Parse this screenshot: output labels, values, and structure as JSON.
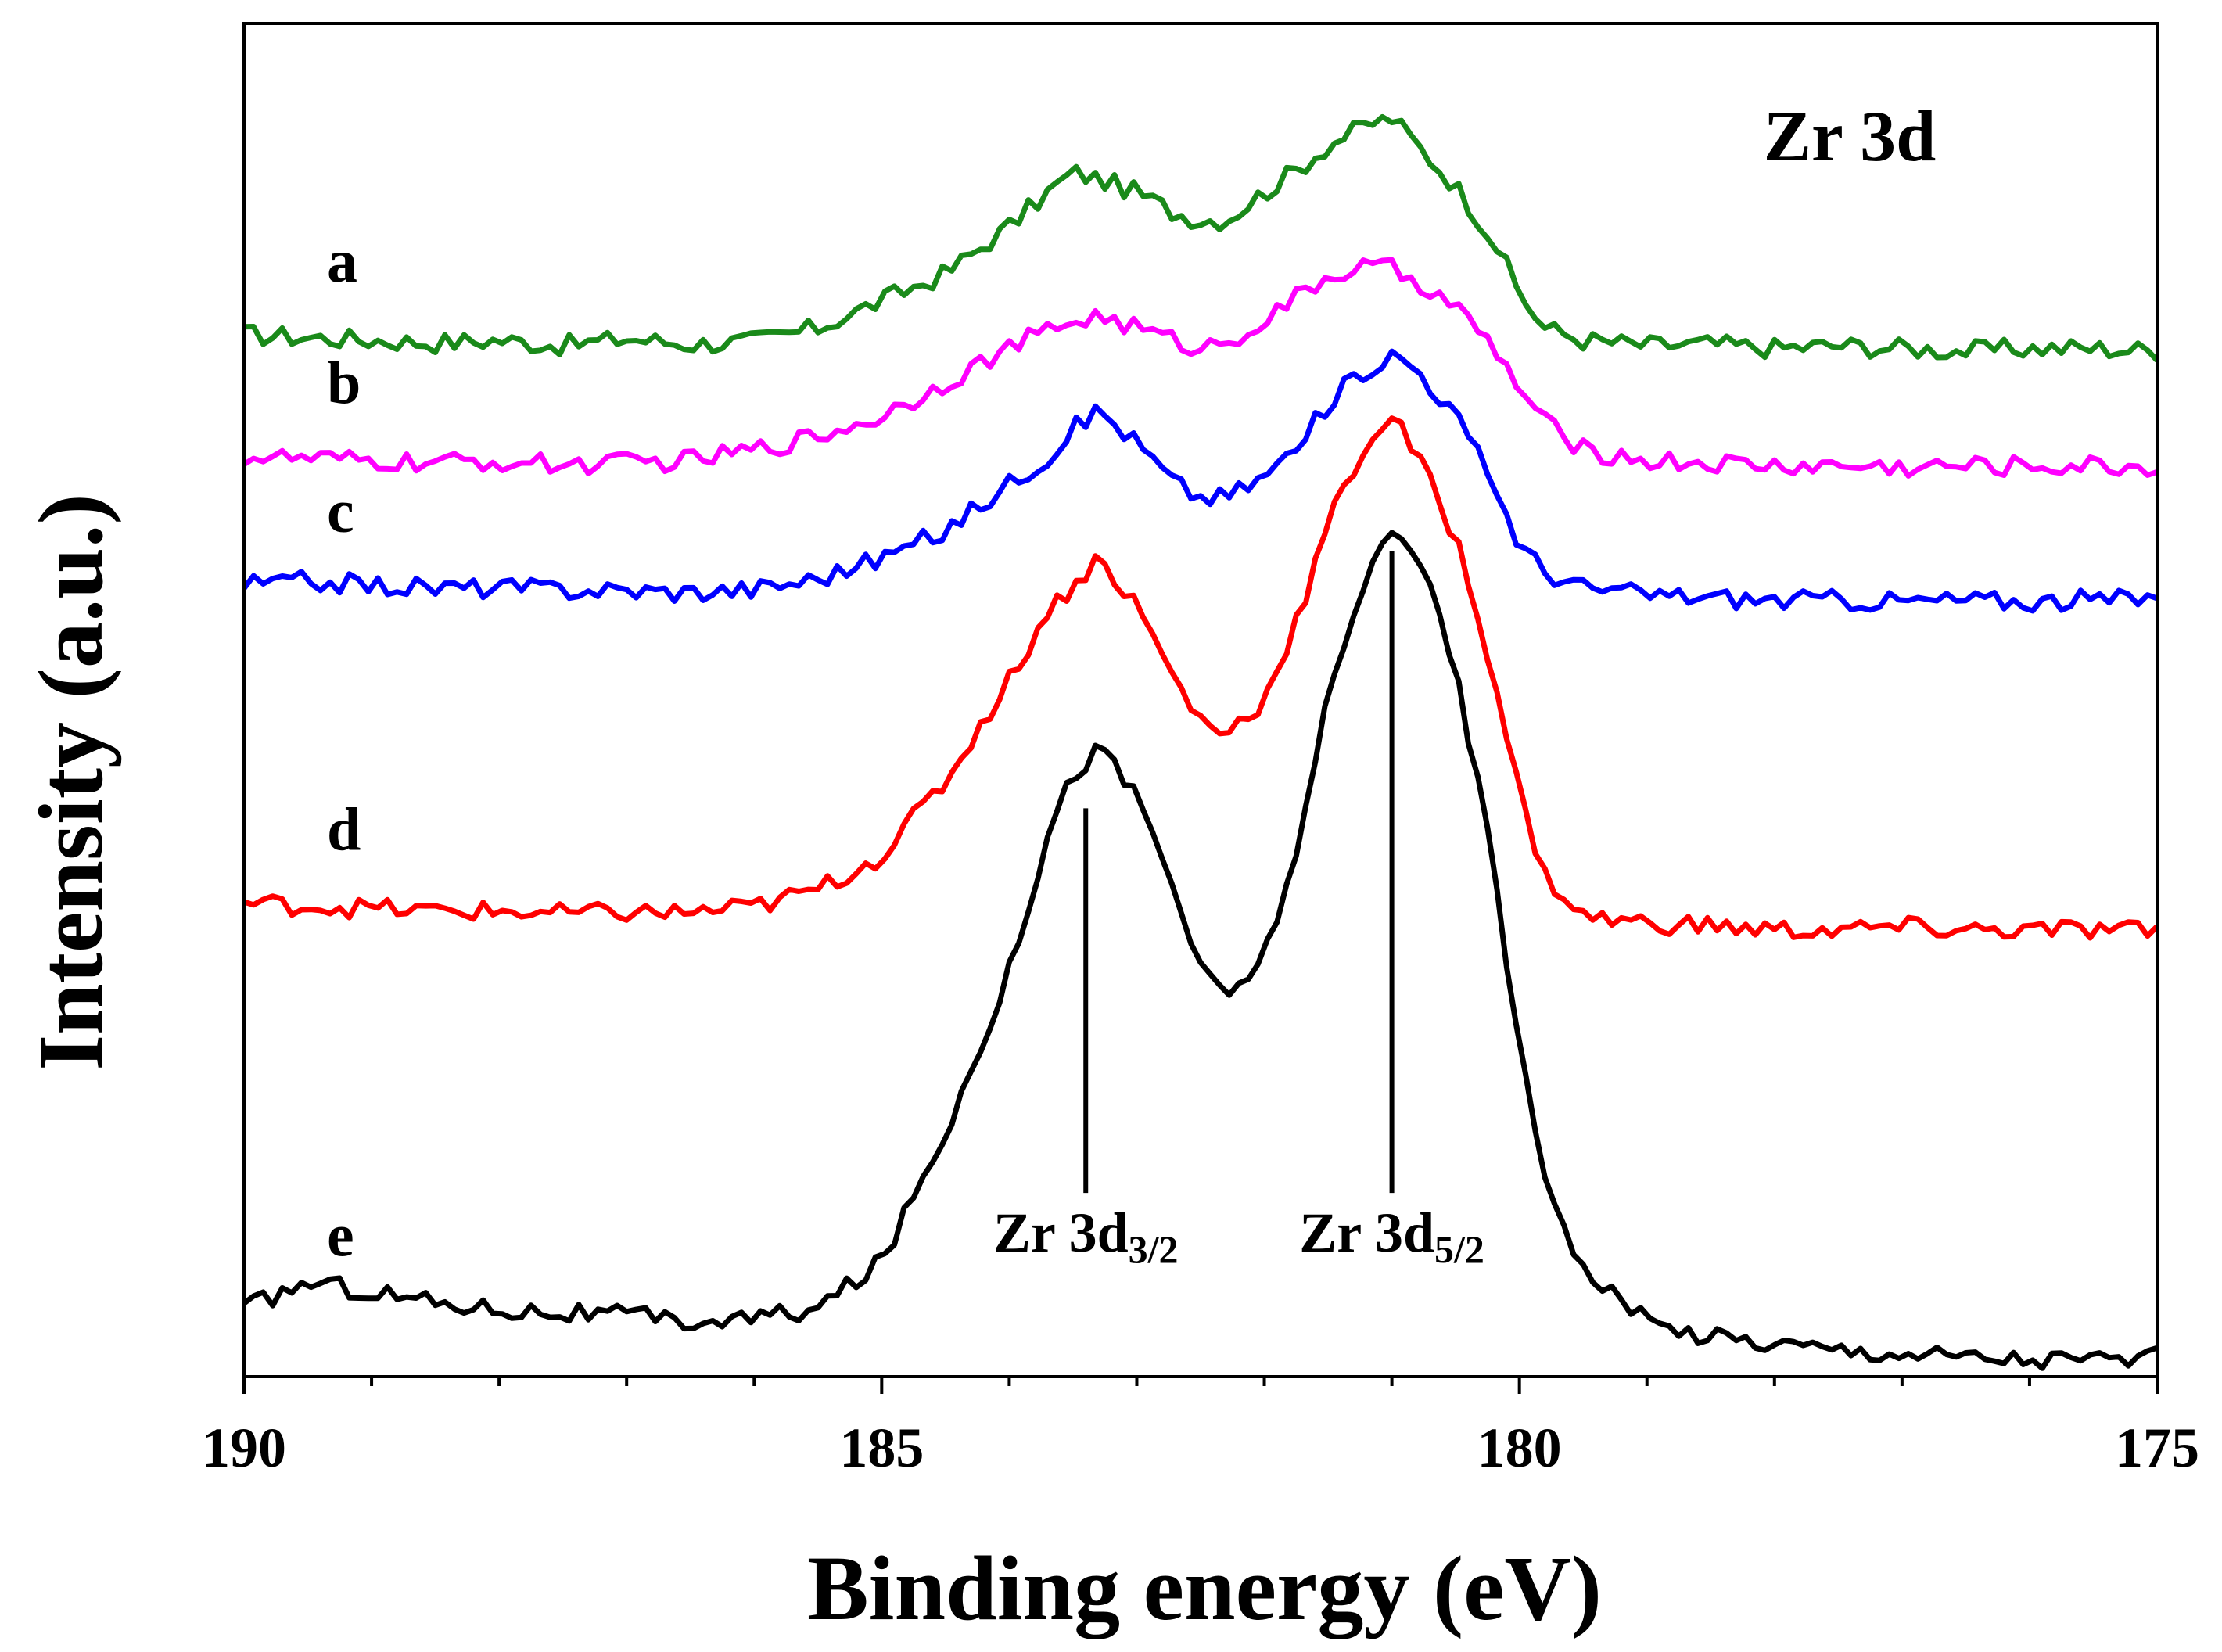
{
  "chart_data": {
    "type": "line",
    "title": "Zr 3d",
    "xlabel": "Binding energy (eV)",
    "ylabel": "Intensity (a.u.)",
    "xlim": [
      190,
      175
    ],
    "xticks": [
      190,
      185,
      180,
      175
    ],
    "x_reversed": true,
    "ylim": [
      0,
      100
    ],
    "y_tick_labels": false,
    "grid": false,
    "legend": "curve letters at left of each trace",
    "series": [
      {
        "name": "a",
        "color": "#1a8a1a",
        "points": [
          [
            190,
            77
          ],
          [
            189.5,
            76.8
          ],
          [
            189,
            76.6
          ],
          [
            188.5,
            76.4
          ],
          [
            188,
            76.6
          ],
          [
            187.5,
            76.2
          ],
          [
            187,
            76.7
          ],
          [
            186.5,
            76.3
          ],
          [
            186,
            76.5
          ],
          [
            185.5,
            77.5
          ],
          [
            185,
            79.5
          ],
          [
            184.5,
            81.5
          ],
          [
            184,
            85
          ],
          [
            183.7,
            87.5
          ],
          [
            183.5,
            89
          ],
          [
            183.3,
            88.5
          ],
          [
            183,
            87.5
          ],
          [
            182.7,
            86
          ],
          [
            182.5,
            85.5
          ],
          [
            182.3,
            85.5
          ],
          [
            182,
            87.5
          ],
          [
            181.7,
            89.5
          ],
          [
            181.5,
            91
          ],
          [
            181.2,
            92.5
          ],
          [
            181,
            93
          ],
          [
            180.8,
            91
          ],
          [
            180.5,
            88
          ],
          [
            180.2,
            84
          ],
          [
            180,
            80
          ],
          [
            179.8,
            77.5
          ],
          [
            179.5,
            76.6
          ],
          [
            179,
            76.2
          ],
          [
            178.5,
            76.3
          ],
          [
            178,
            76
          ],
          [
            177.5,
            76.2
          ],
          [
            177,
            76
          ],
          [
            176.5,
            75.8
          ],
          [
            176,
            76
          ],
          [
            175.5,
            76
          ],
          [
            175,
            75.8
          ]
        ]
      },
      {
        "name": "b",
        "color": "#ff00ff",
        "points": [
          [
            190,
            68
          ],
          [
            189.5,
            67.8
          ],
          [
            189,
            67.6
          ],
          [
            188.5,
            67.5
          ],
          [
            188,
            67.6
          ],
          [
            187.5,
            67.4
          ],
          [
            187,
            67.5
          ],
          [
            186.5,
            67.7
          ],
          [
            186,
            68.5
          ],
          [
            185.5,
            69.5
          ],
          [
            185,
            71
          ],
          [
            184.5,
            73.5
          ],
          [
            184,
            76
          ],
          [
            183.7,
            77.3
          ],
          [
            183.5,
            78
          ],
          [
            183.3,
            78.4
          ],
          [
            183,
            77.5
          ],
          [
            182.7,
            76.5
          ],
          [
            182.5,
            76
          ],
          [
            182.3,
            76.5
          ],
          [
            182,
            78
          ],
          [
            181.7,
            80
          ],
          [
            181.5,
            81.3
          ],
          [
            181.2,
            82
          ],
          [
            181,
            81.8
          ],
          [
            180.8,
            81
          ],
          [
            180.5,
            79
          ],
          [
            180.2,
            76
          ],
          [
            180,
            73
          ],
          [
            179.8,
            70.5
          ],
          [
            179.5,
            68.5
          ],
          [
            179,
            67.7
          ],
          [
            178.5,
            67.5
          ],
          [
            178,
            67.3
          ],
          [
            177.5,
            67.3
          ],
          [
            177,
            67.2
          ],
          [
            176.5,
            67.3
          ],
          [
            176,
            67.3
          ],
          [
            175.5,
            67.3
          ],
          [
            175,
            67.2
          ]
        ]
      },
      {
        "name": "c",
        "color": "#0000ff",
        "points": [
          [
            190,
            58.5
          ],
          [
            189.5,
            58.8
          ],
          [
            189,
            58.5
          ],
          [
            188.5,
            58.3
          ],
          [
            188,
            58.3
          ],
          [
            187.5,
            58.2
          ],
          [
            187,
            58.1
          ],
          [
            186.5,
            58
          ],
          [
            186,
            58.2
          ],
          [
            185.5,
            59
          ],
          [
            185,
            60.5
          ],
          [
            184.5,
            62.5
          ],
          [
            184,
            66
          ],
          [
            183.7,
            68
          ],
          [
            183.5,
            70
          ],
          [
            183.3,
            71.5
          ],
          [
            183,
            69
          ],
          [
            182.7,
            66
          ],
          [
            182.5,
            65
          ],
          [
            182.3,
            65
          ],
          [
            182,
            66.5
          ],
          [
            181.7,
            69
          ],
          [
            181.5,
            72
          ],
          [
            181.2,
            74.5
          ],
          [
            181,
            75.5
          ],
          [
            180.8,
            74.5
          ],
          [
            180.5,
            71
          ],
          [
            180.2,
            66
          ],
          [
            180,
            61.5
          ],
          [
            179.8,
            59.5
          ],
          [
            179.5,
            58.3
          ],
          [
            179,
            57.8
          ],
          [
            178.5,
            57.6
          ],
          [
            178,
            57.4
          ],
          [
            177.5,
            57.4
          ],
          [
            177,
            57.3
          ],
          [
            176.5,
            57.4
          ],
          [
            176,
            57.3
          ],
          [
            175.5,
            57.4
          ],
          [
            175,
            57.5
          ]
        ]
      },
      {
        "name": "d",
        "color": "#ff0000",
        "points": [
          [
            190,
            35
          ],
          [
            189.5,
            34.8
          ],
          [
            189,
            34.6
          ],
          [
            188.5,
            34.4
          ],
          [
            188,
            34.4
          ],
          [
            187.5,
            34.2
          ],
          [
            187,
            34.3
          ],
          [
            186.5,
            34.3
          ],
          [
            186,
            34.7
          ],
          [
            185.5,
            36
          ],
          [
            185,
            38.5
          ],
          [
            184.5,
            44
          ],
          [
            184,
            51.5
          ],
          [
            183.7,
            56.5
          ],
          [
            183.5,
            58.5
          ],
          [
            183.3,
            60.5
          ],
          [
            183,
            57
          ],
          [
            182.7,
            51.5
          ],
          [
            182.5,
            48.5
          ],
          [
            182.3,
            47.5
          ],
          [
            182,
            50
          ],
          [
            181.7,
            57
          ],
          [
            181.5,
            63
          ],
          [
            181.2,
            69
          ],
          [
            181,
            71
          ],
          [
            180.8,
            68
          ],
          [
            180.5,
            62
          ],
          [
            180.2,
            52
          ],
          [
            180,
            43
          ],
          [
            179.8,
            37
          ],
          [
            179.5,
            34
          ],
          [
            179,
            33.5
          ],
          [
            178.5,
            33.3
          ],
          [
            178,
            33
          ],
          [
            177.5,
            33
          ],
          [
            177,
            33.2
          ],
          [
            176.5,
            33
          ],
          [
            176,
            33
          ],
          [
            175.5,
            33
          ],
          [
            175,
            32.9
          ]
        ]
      },
      {
        "name": "e",
        "color": "#000000",
        "points": [
          [
            190,
            5
          ],
          [
            189.5,
            7
          ],
          [
            189,
            6.3
          ],
          [
            188.5,
            5.5
          ],
          [
            188,
            5
          ],
          [
            187.5,
            4.7
          ],
          [
            187,
            4.5
          ],
          [
            186.5,
            4
          ],
          [
            186,
            4.3
          ],
          [
            185.5,
            5
          ],
          [
            185,
            8.5
          ],
          [
            184.5,
            18
          ],
          [
            184,
            30
          ],
          [
            183.7,
            40
          ],
          [
            183.5,
            44.5
          ],
          [
            183.3,
            46.5
          ],
          [
            183,
            43
          ],
          [
            182.7,
            36
          ],
          [
            182.5,
            30
          ],
          [
            182.3,
            28
          ],
          [
            182,
            31
          ],
          [
            181.7,
            40.5
          ],
          [
            181.5,
            50
          ],
          [
            181.2,
            59
          ],
          [
            181,
            63
          ],
          [
            180.8,
            61
          ],
          [
            180.5,
            52
          ],
          [
            180.2,
            38
          ],
          [
            180,
            24
          ],
          [
            179.8,
            15
          ],
          [
            179.5,
            8
          ],
          [
            179,
            4
          ],
          [
            178.5,
            3
          ],
          [
            178,
            2.5
          ],
          [
            177.5,
            2
          ],
          [
            177,
            1.8
          ],
          [
            176.5,
            1.5
          ],
          [
            176,
            1.3
          ],
          [
            175.5,
            1.3
          ],
          [
            175,
            1.4
          ]
        ]
      }
    ],
    "annotations": [
      {
        "label": "Zr 3d",
        "sub": "3/2",
        "x": 183.4,
        "y_top": 42,
        "y_bottom": 13
      },
      {
        "label": "Zr 3d",
        "sub": "5/2",
        "x": 181.0,
        "y_top": 61,
        "y_bottom": 13
      }
    ]
  }
}
